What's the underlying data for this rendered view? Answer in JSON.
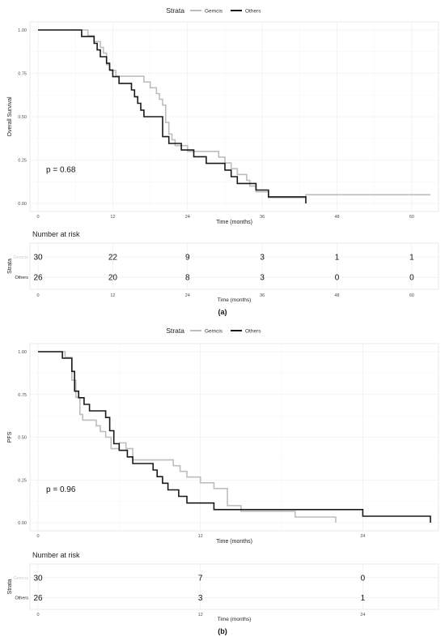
{
  "panels": [
    {
      "caption": "(a)",
      "legend": {
        "title": "Strata",
        "items": [
          "Gemcis",
          "Others"
        ]
      },
      "chart_data": {
        "type": "line",
        "step": true,
        "xlabel": "Time (months)",
        "ylabel": "Overall Survival",
        "xlim": [
          0,
          63
        ],
        "ylim": [
          0,
          1
        ],
        "xticks": [
          "0",
          "12",
          "24",
          "36",
          "48",
          "60"
        ],
        "yticks": [
          "0.00",
          "0.25",
          "0.50",
          "0.75",
          "1.00"
        ],
        "annotation": "p = 0.68",
        "grid": true,
        "legend_position": "top",
        "series": [
          {
            "name": "Gemcis",
            "color": "#bdbdbd",
            "points": [
              [
                0,
                1
              ],
              [
                8,
                1
              ],
              [
                8,
                0.967
              ],
              [
                9,
                0.933
              ],
              [
                10,
                0.9
              ],
              [
                10.5,
                0.867
              ],
              [
                11,
                0.8
              ],
              [
                11.5,
                0.767
              ],
              [
                12.5,
                0.733
              ],
              [
                17,
                0.7
              ],
              [
                18,
                0.667
              ],
              [
                19,
                0.633
              ],
              [
                19.5,
                0.6
              ],
              [
                20,
                0.567
              ],
              [
                20.5,
                0.467
              ],
              [
                21,
                0.4
              ],
              [
                21.5,
                0.367
              ],
              [
                22,
                0.333
              ],
              [
                24,
                0.3
              ],
              [
                29,
                0.267
              ],
              [
                30,
                0.233
              ],
              [
                31,
                0.2
              ],
              [
                32,
                0.167
              ],
              [
                33.5,
                0.133
              ],
              [
                34,
                0.1
              ],
              [
                35,
                0.067
              ],
              [
                37,
                0.033
              ],
              [
                42,
                0.033
              ],
              [
                43,
                0.05
              ],
              [
                63,
                0.05
              ]
            ]
          },
          {
            "name": "Others",
            "color": "#1a1a1a",
            "points": [
              [
                0,
                1
              ],
              [
                7,
                1
              ],
              [
                7,
                0.962
              ],
              [
                9,
                0.923
              ],
              [
                9.5,
                0.885
              ],
              [
                10,
                0.846
              ],
              [
                11,
                0.808
              ],
              [
                11.5,
                0.769
              ],
              [
                12,
                0.731
              ],
              [
                13,
                0.692
              ],
              [
                15,
                0.654
              ],
              [
                15.5,
                0.615
              ],
              [
                16,
                0.577
              ],
              [
                16.5,
                0.538
              ],
              [
                17,
                0.5
              ],
              [
                20,
                0.385
              ],
              [
                21,
                0.346
              ],
              [
                23,
                0.308
              ],
              [
                25,
                0.269
              ],
              [
                27,
                0.231
              ],
              [
                30,
                0.192
              ],
              [
                31,
                0.154
              ],
              [
                32,
                0.115
              ],
              [
                35,
                0.077
              ],
              [
                37,
                0.038
              ],
              [
                40,
                0.038
              ],
              [
                43,
                0.0
              ]
            ]
          }
        ]
      },
      "risk_table": {
        "title": "Number at risk",
        "strata_label": "Strata",
        "xlabel": "Time (months)",
        "xticks": [
          "0",
          "12",
          "24",
          "36",
          "48",
          "60"
        ],
        "rows": [
          {
            "label": "Gemcis",
            "values": [
              "30",
              "22",
              "9",
              "3",
              "1",
              "1"
            ]
          },
          {
            "label": "Others",
            "values": [
              "26",
              "20",
              "8",
              "3",
              "0",
              "0"
            ]
          }
        ]
      }
    },
    {
      "caption": "(b)",
      "legend": {
        "title": "Strata",
        "items": [
          "Gemcis",
          "Others"
        ]
      },
      "chart_data": {
        "type": "line",
        "step": true,
        "xlabel": "Time (months)",
        "ylabel": "PFS",
        "xlim": [
          0,
          29
        ],
        "ylim": [
          0,
          1
        ],
        "xticks": [
          "0",
          "12",
          "24"
        ],
        "yticks": [
          "0.00",
          "0.25",
          "0.50",
          "0.75",
          "1.00"
        ],
        "annotation": "p = 0.96",
        "grid": true,
        "legend_position": "top",
        "series": [
          {
            "name": "Gemcis",
            "color": "#bdbdbd",
            "points": [
              [
                0,
                1
              ],
              [
                2,
                1
              ],
              [
                2,
                0.967
              ],
              [
                2.5,
                0.833
              ],
              [
                2.8,
                0.733
              ],
              [
                3.1,
                0.633
              ],
              [
                3.3,
                0.6
              ],
              [
                4.3,
                0.567
              ],
              [
                4.6,
                0.533
              ],
              [
                5,
                0.5
              ],
              [
                5.4,
                0.433
              ],
              [
                6,
                0.467
              ],
              [
                6.5,
                0.433
              ],
              [
                7,
                0.367
              ],
              [
                10,
                0.333
              ],
              [
                10.5,
                0.3
              ],
              [
                11,
                0.267
              ],
              [
                12,
                0.233
              ],
              [
                13,
                0.2
              ],
              [
                14,
                0.1
              ],
              [
                15,
                0.067
              ],
              [
                18,
                0.067
              ],
              [
                19,
                0.033
              ],
              [
                22,
                0.033
              ],
              [
                22,
                0.0
              ]
            ]
          },
          {
            "name": "Others",
            "color": "#1a1a1a",
            "points": [
              [
                0,
                1
              ],
              [
                1.8,
                1
              ],
              [
                1.8,
                0.962
              ],
              [
                2.5,
                0.885
              ],
              [
                2.7,
                0.769
              ],
              [
                3,
                0.731
              ],
              [
                3.4,
                0.692
              ],
              [
                3.8,
                0.654
              ],
              [
                5,
                0.615
              ],
              [
                5.3,
                0.538
              ],
              [
                5.6,
                0.462
              ],
              [
                6,
                0.423
              ],
              [
                6.6,
                0.385
              ],
              [
                7,
                0.346
              ],
              [
                8.5,
                0.308
              ],
              [
                8.8,
                0.269
              ],
              [
                9.2,
                0.231
              ],
              [
                9.6,
                0.192
              ],
              [
                10.4,
                0.154
              ],
              [
                11,
                0.115
              ],
              [
                13,
                0.077
              ],
              [
                24,
                0.038
              ],
              [
                29,
                0.038
              ],
              [
                29,
                0.0
              ]
            ]
          }
        ]
      },
      "risk_table": {
        "title": "Number at risk",
        "strata_label": "Strata",
        "xlabel": "Time (months)",
        "xticks": [
          "0",
          "12",
          "24"
        ],
        "rows": [
          {
            "label": "Gemcis",
            "values": [
              "30",
              "7",
              "0"
            ]
          },
          {
            "label": "Others",
            "values": [
              "26",
              "3",
              "1"
            ]
          }
        ]
      }
    }
  ]
}
